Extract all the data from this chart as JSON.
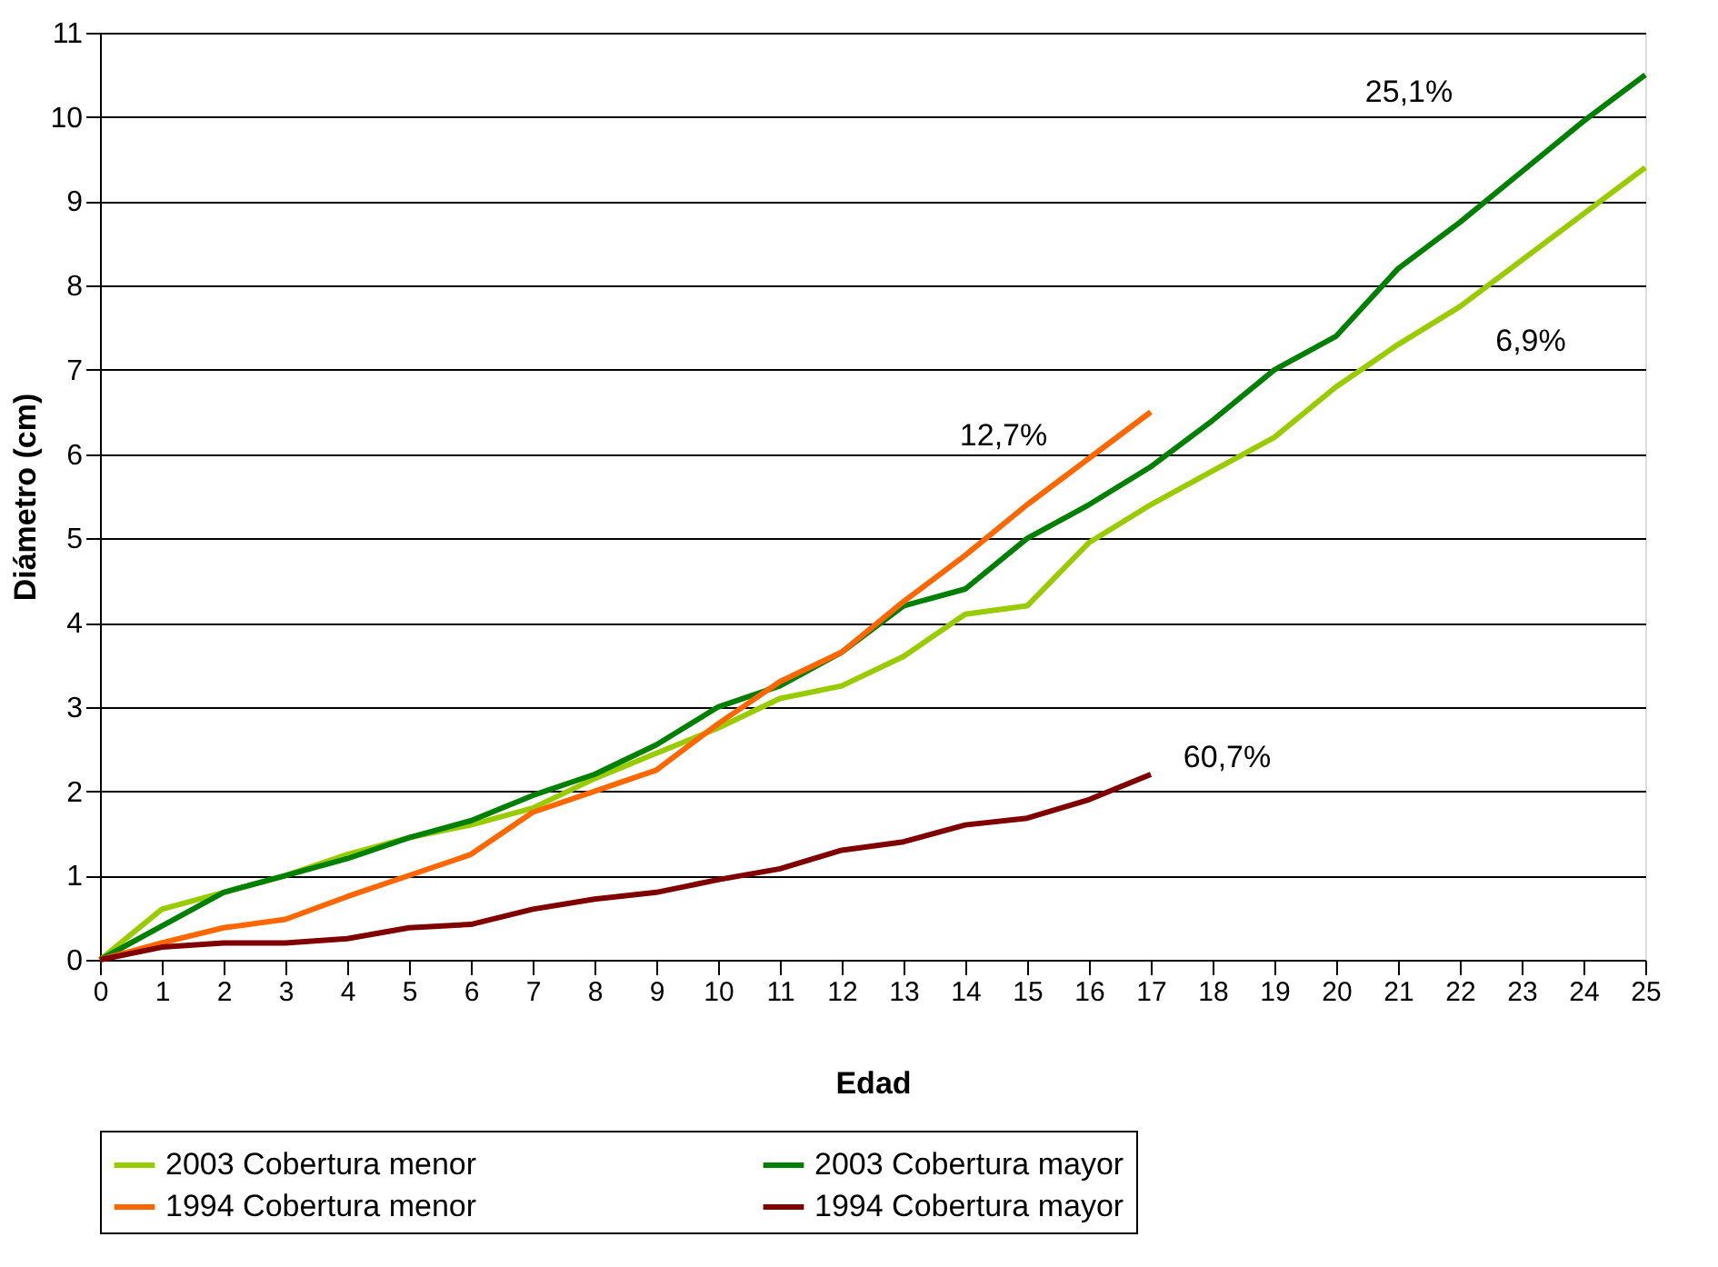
{
  "chart_data": {
    "type": "line",
    "xlabel": "Edad",
    "ylabel": "Diámetro (cm)",
    "x": [
      0,
      1,
      2,
      3,
      4,
      5,
      6,
      7,
      8,
      9,
      10,
      11,
      12,
      13,
      14,
      15,
      16,
      17,
      18,
      19,
      20,
      21,
      22,
      23,
      24,
      25
    ],
    "series": [
      {
        "name": "2003 Cobertura menor",
        "color": "#99cc00",
        "values": [
          0,
          0.6,
          0.8,
          1.0,
          1.25,
          1.45,
          1.6,
          1.8,
          2.15,
          2.45,
          2.75,
          3.1,
          3.25,
          3.6,
          4.1,
          4.2,
          4.95,
          5.4,
          5.8,
          6.2,
          6.8,
          7.3,
          7.75,
          8.3,
          8.85,
          9.4
        ]
      },
      {
        "name": "2003 Cobertura mayor",
        "color": "#008000",
        "values": [
          0,
          0.4,
          0.8,
          1.0,
          1.2,
          1.45,
          1.65,
          1.95,
          2.2,
          2.55,
          3.0,
          3.25,
          3.65,
          4.2,
          4.4,
          5.0,
          5.4,
          5.85,
          6.4,
          7.0,
          7.4,
          8.2,
          8.75,
          9.35,
          9.95,
          10.5
        ]
      },
      {
        "name": "1994 Cobertura menor",
        "color": "#ff6600",
        "values": [
          0,
          0.2,
          0.38,
          0.48,
          0.75,
          1.0,
          1.25,
          1.75,
          2.0,
          2.25,
          2.8,
          3.3,
          3.65,
          4.25,
          4.8,
          5.4,
          5.95,
          6.5,
          null,
          null,
          null,
          null,
          null,
          null,
          null,
          null
        ]
      },
      {
        "name": "1994 Cobertura mayor",
        "color": "#800000",
        "values": [
          0,
          0.15,
          0.2,
          0.2,
          0.25,
          0.38,
          0.42,
          0.6,
          0.72,
          0.8,
          0.95,
          1.08,
          1.3,
          1.4,
          1.6,
          1.68,
          1.9,
          2.2,
          null,
          null,
          null,
          null,
          null,
          null,
          null,
          null
        ]
      }
    ],
    "xlim": [
      0,
      25
    ],
    "xticks": [
      0,
      1,
      2,
      3,
      4,
      5,
      6,
      7,
      8,
      9,
      10,
      11,
      12,
      13,
      14,
      15,
      16,
      17,
      18,
      19,
      20,
      21,
      22,
      23,
      24,
      25
    ],
    "ylim": [
      0,
      11
    ],
    "yticks": [
      0,
      1,
      2,
      3,
      4,
      5,
      6,
      7,
      8,
      9,
      10,
      11
    ],
    "grid": "y",
    "legend": "bottom",
    "marker": "none",
    "line_style": "solid",
    "annotations": [
      "25,1%",
      "6,9%",
      "12,7%",
      "60,7%"
    ]
  }
}
